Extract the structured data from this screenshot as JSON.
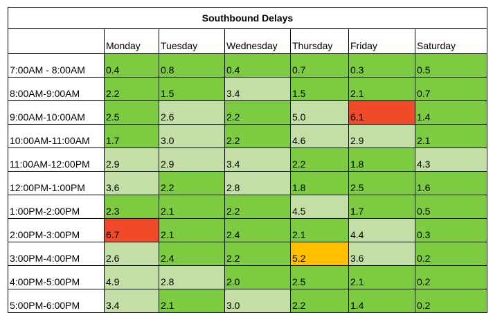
{
  "title": "Southbound Delays",
  "days": [
    "Monday",
    "Tuesday",
    "Wednesday",
    "Thursday",
    "Friday",
    "Saturday"
  ],
  "colors": {
    "green": "#7CCB40",
    "light_green": "#C4DFA6",
    "red": "#F04B28",
    "orange": "#FFBF00",
    "white": "#FFFFFF"
  },
  "rows": [
    {
      "time": "7:00AM - 8:00AM",
      "values": [
        "0.4",
        "0.8",
        "0.4",
        "0.7",
        "0.3",
        "0.5"
      ],
      "colors": [
        "green",
        "green",
        "green",
        "green",
        "green",
        "green"
      ]
    },
    {
      "time": "8:00AM-9:00AM",
      "values": [
        "2.2",
        "1.5",
        "3.4",
        "1.5",
        "2.1",
        "0.7"
      ],
      "colors": [
        "green",
        "green",
        "light_green",
        "green",
        "green",
        "green"
      ]
    },
    {
      "time": "9:00AM-10:00AM",
      "values": [
        "2.5",
        "2.6",
        "2.2",
        "5.0",
        "6.1",
        "1.4"
      ],
      "colors": [
        "green",
        "light_green",
        "green",
        "light_green",
        "red",
        "green"
      ]
    },
    {
      "time": "10:00AM-11:00AM",
      "values": [
        "1.7",
        "3.0",
        "2.2",
        "4.6",
        "2.9",
        "2.1"
      ],
      "colors": [
        "green",
        "light_green",
        "green",
        "light_green",
        "light_green",
        "green"
      ]
    },
    {
      "time": "11:00AM-12:00PM",
      "values": [
        "2.9",
        "2.9",
        "3.4",
        "2.2",
        "1.8",
        "4.3"
      ],
      "colors": [
        "light_green",
        "light_green",
        "light_green",
        "green",
        "green",
        "light_green"
      ]
    },
    {
      "time": "12:00PM-1:00PM",
      "values": [
        "3.6",
        "2.2",
        "2.8",
        "1.8",
        "2.5",
        "1.6"
      ],
      "colors": [
        "light_green",
        "green",
        "light_green",
        "green",
        "green",
        "green"
      ]
    },
    {
      "time": "1:00PM-2:00PM",
      "values": [
        "2.3",
        "2.1",
        "2.2",
        "4.5",
        "1.7",
        "0.5"
      ],
      "colors": [
        "green",
        "green",
        "green",
        "light_green",
        "green",
        "green"
      ]
    },
    {
      "time": "2:00PM-3:00PM",
      "values": [
        "6.7",
        "2.1",
        "2.4",
        "2.1",
        "4.4",
        "0.3"
      ],
      "colors": [
        "red",
        "green",
        "green",
        "green",
        "light_green",
        "green"
      ]
    },
    {
      "time": "3:00PM-4:00PM",
      "values": [
        "2.6",
        "2.4",
        "2.2",
        "5.2",
        "3.6",
        "0.2"
      ],
      "colors": [
        "light_green",
        "green",
        "green",
        "orange",
        "light_green",
        "green"
      ]
    },
    {
      "time": "4:00PM-5:00PM",
      "values": [
        "4.9",
        "2.8",
        "2.0",
        "2.5",
        "2.1",
        "0.2"
      ],
      "colors": [
        "light_green",
        "light_green",
        "green",
        "green",
        "green",
        "green"
      ]
    },
    {
      "time": "5:00PM-6:00PM",
      "values": [
        "3.4",
        "2.1",
        "3.0",
        "2.2",
        "1.4",
        "0.2"
      ],
      "colors": [
        "light_green",
        "green",
        "light_green",
        "green",
        "green",
        "green"
      ]
    }
  ]
}
